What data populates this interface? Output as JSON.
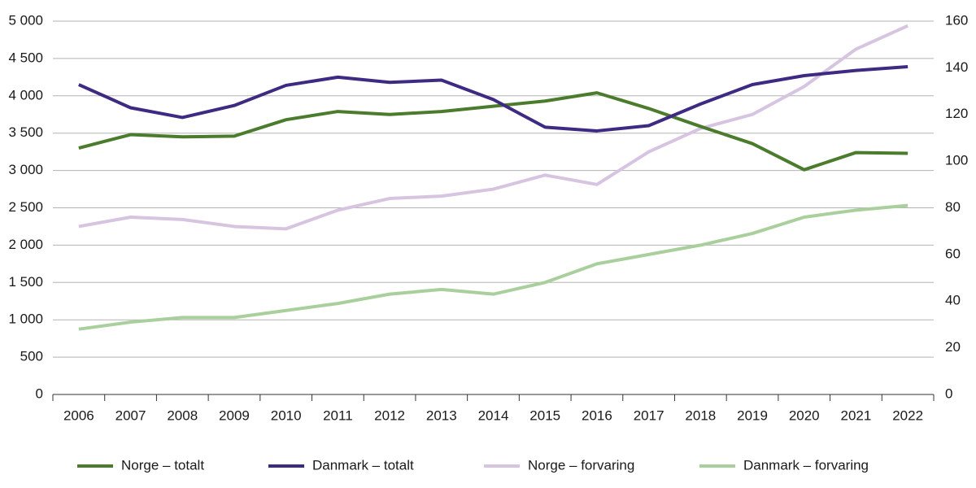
{
  "chart_data": {
    "type": "line",
    "categories": [
      "2006",
      "2007",
      "2008",
      "2009",
      "2010",
      "2011",
      "2012",
      "2013",
      "2014",
      "2015",
      "2016",
      "2017",
      "2018",
      "2019",
      "2020",
      "2021",
      "2022"
    ],
    "series": [
      {
        "name": "Norge – totalt",
        "color": "#4b7b2c",
        "values": [
          3300,
          3480,
          3450,
          3460,
          3680,
          3790,
          3750,
          3790,
          3860,
          3930,
          4040,
          3830,
          3590,
          3360,
          3010,
          3240,
          3230
        ]
      },
      {
        "name": "Danmark – totalt",
        "color": "#3e2a82",
        "values": [
          4150,
          3840,
          3710,
          3870,
          4140,
          4250,
          4180,
          4210,
          3950,
          3580,
          3530,
          3600,
          3890,
          4150,
          4270,
          4340,
          4390
        ]
      },
      {
        "name": "Norge – forvaring",
        "color": "#d6c4e1",
        "axis": "y2",
        "values": [
          72,
          76,
          75,
          72,
          71,
          79,
          84,
          85,
          88,
          94,
          90,
          104,
          114,
          120,
          132,
          148,
          158
        ]
      },
      {
        "name": "Danmark – forvaring",
        "color": "#a9d09c",
        "axis": "y2",
        "values": [
          28,
          31,
          33,
          33,
          36,
          39,
          43,
          45,
          43,
          48,
          56,
          60,
          64,
          69,
          76,
          79,
          81
        ]
      }
    ],
    "ylim": [
      0,
      5000
    ],
    "yticks": [
      0,
      500,
      {
        "value": 1000,
        "label": "1 000"
      },
      {
        "value": 1500,
        "label": "1 500"
      },
      {
        "value": 2000,
        "label": "2 000"
      },
      {
        "value": 2500,
        "label": "2 500"
      },
      {
        "value": 3000,
        "label": "3 000"
      },
      {
        "value": 3500,
        "label": "3 500"
      },
      {
        "value": 4000,
        "label": "4 000"
      },
      {
        "value": 4500,
        "label": "4 500"
      },
      {
        "value": 5000,
        "label": "5 000"
      }
    ],
    "y2lim": [
      0,
      160
    ],
    "y2ticks": [
      0,
      20,
      40,
      60,
      80,
      100,
      120,
      140,
      160
    ],
    "grid": true,
    "legend": "bottom"
  }
}
